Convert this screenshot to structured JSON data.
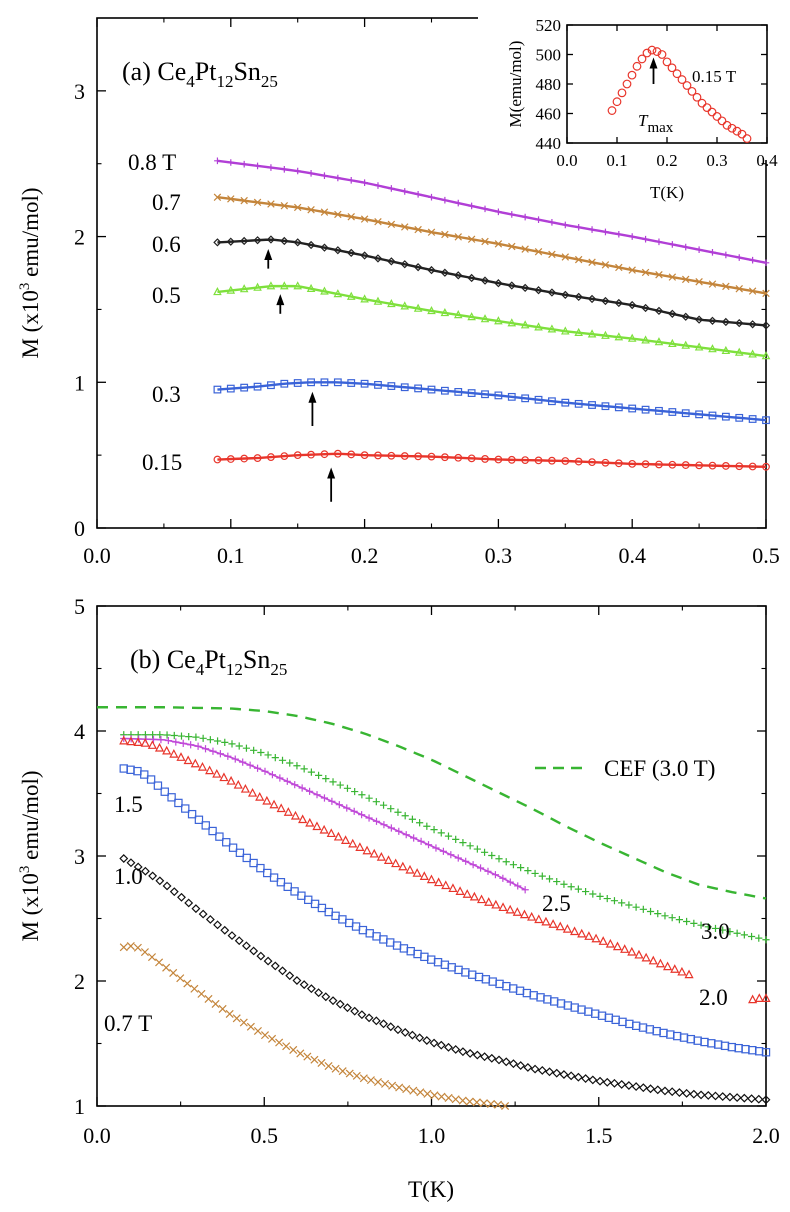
{
  "chart_data": [
    {
      "type": "line",
      "panel_label": "(a) Ce",
      "compound": {
        "ce": "Ce",
        "ce_sub": "4",
        "pt": "Pt",
        "pt_sub": "12",
        "sn": "Sn",
        "sn_sub": "25"
      },
      "xlabel": "",
      "ylabel": {
        "main": "M (x10",
        "sup": "3",
        "rest": " emu/mol)"
      },
      "xlim": [
        0,
        0.5
      ],
      "ylim": [
        0,
        3.5
      ],
      "xticks": [
        "0.0",
        "0.1",
        "0.2",
        "0.3",
        "0.4",
        "0.5"
      ],
      "yticks": [
        "0",
        "1",
        "2",
        "3"
      ],
      "series": [
        {
          "name": "0.8 T",
          "label": "0.8 T",
          "marker": "plus",
          "color": "#b13fd6",
          "points": [
            [
              0.09,
              2.52
            ],
            [
              0.15,
              2.45
            ],
            [
              0.2,
              2.37
            ],
            [
              0.25,
              2.27
            ],
            [
              0.3,
              2.17
            ],
            [
              0.35,
              2.08
            ],
            [
              0.4,
              2.0
            ],
            [
              0.45,
              1.91
            ],
            [
              0.5,
              1.82
            ]
          ]
        },
        {
          "name": "0.7",
          "label": "0.7",
          "marker": "x",
          "color": "#c4853b",
          "points": [
            [
              0.09,
              2.27
            ],
            [
              0.15,
              2.2
            ],
            [
              0.2,
              2.12
            ],
            [
              0.25,
              2.03
            ],
            [
              0.3,
              1.95
            ],
            [
              0.35,
              1.86
            ],
            [
              0.4,
              1.77
            ],
            [
              0.45,
              1.69
            ],
            [
              0.5,
              1.61
            ]
          ]
        },
        {
          "name": "0.6",
          "label": "0.6",
          "marker": "diamond",
          "color": "#222222",
          "points": [
            [
              0.09,
              1.96
            ],
            [
              0.11,
              1.97
            ],
            [
              0.13,
              1.98
            ],
            [
              0.15,
              1.96
            ],
            [
              0.2,
              1.87
            ],
            [
              0.25,
              1.77
            ],
            [
              0.3,
              1.68
            ],
            [
              0.35,
              1.6
            ],
            [
              0.4,
              1.53
            ],
            [
              0.43,
              1.47
            ],
            [
              0.45,
              1.43
            ],
            [
              0.5,
              1.39
            ]
          ]
        },
        {
          "name": "0.5",
          "label": "0.5",
          "marker": "triangle",
          "color": "#7ee03c",
          "points": [
            [
              0.09,
              1.62
            ],
            [
              0.11,
              1.64
            ],
            [
              0.13,
              1.66
            ],
            [
              0.15,
              1.66
            ],
            [
              0.2,
              1.57
            ],
            [
              0.25,
              1.49
            ],
            [
              0.3,
              1.42
            ],
            [
              0.35,
              1.35
            ],
            [
              0.4,
              1.3
            ],
            [
              0.45,
              1.24
            ],
            [
              0.5,
              1.18
            ]
          ]
        },
        {
          "name": "0.3",
          "label": "0.3",
          "marker": "square",
          "color": "#3a63d8",
          "points": [
            [
              0.09,
              0.95
            ],
            [
              0.12,
              0.97
            ],
            [
              0.14,
              0.99
            ],
            [
              0.16,
              1.0
            ],
            [
              0.18,
              1.0
            ],
            [
              0.2,
              0.99
            ],
            [
              0.25,
              0.95
            ],
            [
              0.3,
              0.91
            ],
            [
              0.35,
              0.86
            ],
            [
              0.4,
              0.82
            ],
            [
              0.45,
              0.78
            ],
            [
              0.5,
              0.74
            ]
          ]
        },
        {
          "name": "0.15",
          "label": "0.15",
          "marker": "circle",
          "color": "#e8352b",
          "points": [
            [
              0.09,
              0.47
            ],
            [
              0.12,
              0.48
            ],
            [
              0.15,
              0.5
            ],
            [
              0.18,
              0.51
            ],
            [
              0.2,
              0.5
            ],
            [
              0.25,
              0.49
            ],
            [
              0.3,
              0.47
            ],
            [
              0.35,
              0.46
            ],
            [
              0.4,
              0.44
            ],
            [
              0.45,
              0.43
            ],
            [
              0.5,
              0.42
            ]
          ]
        }
      ],
      "arrows": [
        {
          "x": 0.128,
          "y_from": 1.78,
          "y_to": 1.97
        },
        {
          "x": 0.137,
          "y_from": 1.47,
          "y_to": 1.66
        },
        {
          "x": 0.161,
          "y_from": 0.7,
          "y_to": 0.99
        },
        {
          "x": 0.175,
          "y_from": 0.18,
          "y_to": 0.47
        }
      ],
      "inset": {
        "xlabel": "T(K)",
        "ylabel": "M(emu/mol)",
        "xlim": [
          0,
          0.4
        ],
        "ylim": [
          440,
          520
        ],
        "xticks": [
          "0.0",
          "0.1",
          "0.2",
          "0.3",
          "0.4"
        ],
        "yticks": [
          "440",
          "460",
          "480",
          "500",
          "520"
        ],
        "field_label": "0.15 T",
        "arrow_label_main": "T",
        "arrow_label_sub": "max",
        "arrow": {
          "x": 0.173,
          "y_from": 480,
          "y_to": 498
        },
        "series": [
          {
            "name": "0.15 T",
            "marker": "circle",
            "color": "#e8352b",
            "points": [
              [
                0.09,
                462
              ],
              [
                0.1,
                468
              ],
              [
                0.11,
                474
              ],
              [
                0.12,
                480
              ],
              [
                0.13,
                486
              ],
              [
                0.14,
                492
              ],
              [
                0.15,
                497
              ],
              [
                0.16,
                501
              ],
              [
                0.17,
                503
              ],
              [
                0.18,
                502
              ],
              [
                0.19,
                500
              ],
              [
                0.2,
                495
              ],
              [
                0.21,
                491
              ],
              [
                0.22,
                487
              ],
              [
                0.23,
                483
              ],
              [
                0.24,
                479
              ],
              [
                0.25,
                475
              ],
              [
                0.26,
                471
              ],
              [
                0.27,
                467
              ],
              [
                0.28,
                464
              ],
              [
                0.29,
                461
              ],
              [
                0.3,
                458
              ],
              [
                0.31,
                455
              ],
              [
                0.32,
                452
              ],
              [
                0.33,
                450
              ],
              [
                0.34,
                448
              ],
              [
                0.35,
                446
              ],
              [
                0.36,
                443
              ]
            ]
          }
        ]
      }
    },
    {
      "type": "line",
      "panel_label": "(b) Ce",
      "compound": {
        "ce": "Ce",
        "ce_sub": "4",
        "pt": "Pt",
        "pt_sub": "12",
        "sn": "Sn",
        "sn_sub": "25"
      },
      "xlabel": "T(K)",
      "ylabel": {
        "main": "M (x10",
        "sup": "3",
        "rest": " emu/mol)"
      },
      "xlim": [
        0,
        2.0
      ],
      "ylim": [
        1,
        5
      ],
      "xticks": [
        "0.0",
        "0.5",
        "1.0",
        "1.5",
        "2.0"
      ],
      "yticks": [
        "1",
        "2",
        "3",
        "4",
        "5"
      ],
      "series": [
        {
          "name": "3.0",
          "label": "3.0",
          "marker": "plus",
          "color": "#38b532",
          "points": [
            [
              0.08,
              3.97
            ],
            [
              0.2,
              3.97
            ],
            [
              0.3,
              3.95
            ],
            [
              0.4,
              3.9
            ],
            [
              0.5,
              3.82
            ],
            [
              0.6,
              3.72
            ],
            [
              0.7,
              3.6
            ],
            [
              0.8,
              3.48
            ],
            [
              0.9,
              3.35
            ],
            [
              1.0,
              3.22
            ],
            [
              1.1,
              3.1
            ],
            [
              1.2,
              2.98
            ],
            [
              1.3,
              2.87
            ],
            [
              1.4,
              2.77
            ],
            [
              1.5,
              2.68
            ],
            [
              1.6,
              2.6
            ],
            [
              1.7,
              2.52
            ],
            [
              1.8,
              2.45
            ],
            [
              1.9,
              2.39
            ],
            [
              2.0,
              2.33
            ]
          ]
        },
        {
          "name": "2.5",
          "label": "2.5",
          "marker": "plus",
          "color": "#c049d8",
          "points": [
            [
              0.08,
              3.94
            ],
            [
              0.2,
              3.93
            ],
            [
              0.3,
              3.88
            ],
            [
              0.4,
              3.79
            ],
            [
              0.5,
              3.68
            ],
            [
              0.6,
              3.56
            ],
            [
              0.7,
              3.44
            ],
            [
              0.8,
              3.32
            ],
            [
              0.9,
              3.2
            ],
            [
              1.0,
              3.08
            ],
            [
              1.1,
              2.96
            ],
            [
              1.2,
              2.84
            ],
            [
              1.28,
              2.73
            ]
          ]
        },
        {
          "name": "2.0",
          "label": "2.0",
          "marker": "triangle",
          "color": "#e8352b",
          "points": [
            [
              0.08,
              3.92
            ],
            [
              0.15,
              3.9
            ],
            [
              0.2,
              3.85
            ],
            [
              0.3,
              3.73
            ],
            [
              0.4,
              3.6
            ],
            [
              0.5,
              3.45
            ],
            [
              0.6,
              3.31
            ],
            [
              0.7,
              3.18
            ],
            [
              0.8,
              3.05
            ],
            [
              0.9,
              2.93
            ],
            [
              1.0,
              2.81
            ],
            [
              1.1,
              2.7
            ],
            [
              1.2,
              2.6
            ],
            [
              1.3,
              2.51
            ],
            [
              1.4,
              2.42
            ],
            [
              1.5,
              2.33
            ],
            [
              1.6,
              2.23
            ],
            [
              1.7,
              2.12
            ],
            [
              1.77,
              2.05
            ]
          ]
        },
        {
          "name": "2.0b",
          "label": "",
          "marker": "triangle",
          "color": "#e8352b",
          "points": [
            [
              1.96,
              1.85
            ],
            [
              1.98,
              1.86
            ],
            [
              2.0,
              1.86
            ]
          ]
        },
        {
          "name": "1.5",
          "label": "1.5",
          "marker": "square",
          "color": "#3a63d8",
          "points": [
            [
              0.08,
              3.7
            ],
            [
              0.12,
              3.68
            ],
            [
              0.15,
              3.64
            ],
            [
              0.2,
              3.52
            ],
            [
              0.3,
              3.3
            ],
            [
              0.4,
              3.08
            ],
            [
              0.5,
              2.88
            ],
            [
              0.6,
              2.7
            ],
            [
              0.7,
              2.54
            ],
            [
              0.8,
              2.4
            ],
            [
              0.9,
              2.28
            ],
            [
              1.0,
              2.17
            ],
            [
              1.1,
              2.07
            ],
            [
              1.2,
              1.98
            ],
            [
              1.3,
              1.89
            ],
            [
              1.4,
              1.81
            ],
            [
              1.5,
              1.73
            ],
            [
              1.6,
              1.65
            ],
            [
              1.7,
              1.58
            ],
            [
              1.8,
              1.52
            ],
            [
              1.9,
              1.47
            ],
            [
              2.0,
              1.43
            ]
          ]
        },
        {
          "name": "1.0",
          "label": "1.0",
          "marker": "diamond",
          "color": "#111111",
          "points": [
            [
              0.08,
              2.98
            ],
            [
              0.15,
              2.87
            ],
            [
              0.2,
              2.78
            ],
            [
              0.3,
              2.57
            ],
            [
              0.4,
              2.37
            ],
            [
              0.5,
              2.18
            ],
            [
              0.6,
              2.0
            ],
            [
              0.7,
              1.85
            ],
            [
              0.8,
              1.72
            ],
            [
              0.9,
              1.61
            ],
            [
              1.0,
              1.51
            ],
            [
              1.1,
              1.43
            ],
            [
              1.2,
              1.37
            ],
            [
              1.3,
              1.3
            ],
            [
              1.4,
              1.25
            ],
            [
              1.5,
              1.2
            ],
            [
              1.6,
              1.16
            ],
            [
              1.7,
              1.12
            ],
            [
              1.8,
              1.09
            ],
            [
              1.9,
              1.07
            ],
            [
              2.0,
              1.05
            ]
          ]
        },
        {
          "name": "0.7 T",
          "label": "0.7 T",
          "marker": "x",
          "color": "#c4853b",
          "points": [
            [
              0.08,
              2.27
            ],
            [
              0.1,
              2.28
            ],
            [
              0.12,
              2.27
            ],
            [
              0.15,
              2.22
            ],
            [
              0.2,
              2.12
            ],
            [
              0.3,
              1.92
            ],
            [
              0.4,
              1.73
            ],
            [
              0.5,
              1.57
            ],
            [
              0.6,
              1.43
            ],
            [
              0.7,
              1.31
            ],
            [
              0.8,
              1.22
            ],
            [
              0.9,
              1.15
            ],
            [
              1.0,
              1.09
            ],
            [
              1.1,
              1.04
            ],
            [
              1.2,
              1.01
            ],
            [
              1.22,
              1.0
            ]
          ]
        }
      ],
      "cef": {
        "label": "CEF (3.0 T)",
        "color": "#38b532",
        "points": [
          [
            0.0,
            4.19
          ],
          [
            0.2,
            4.19
          ],
          [
            0.4,
            4.18
          ],
          [
            0.5,
            4.16
          ],
          [
            0.6,
            4.12
          ],
          [
            0.7,
            4.06
          ],
          [
            0.8,
            3.98
          ],
          [
            0.9,
            3.88
          ],
          [
            1.0,
            3.77
          ],
          [
            1.1,
            3.64
          ],
          [
            1.2,
            3.51
          ],
          [
            1.3,
            3.38
          ],
          [
            1.4,
            3.24
          ],
          [
            1.5,
            3.11
          ],
          [
            1.6,
            2.99
          ],
          [
            1.7,
            2.87
          ],
          [
            1.8,
            2.77
          ],
          [
            1.9,
            2.71
          ],
          [
            2.0,
            2.66
          ]
        ]
      }
    }
  ]
}
